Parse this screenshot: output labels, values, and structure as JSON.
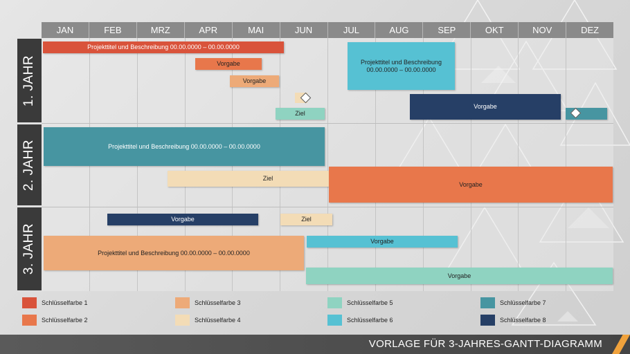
{
  "months": [
    "JAN",
    "FEB",
    "MRZ",
    "APR",
    "MAI",
    "JUN",
    "JUL",
    "AUG",
    "SEP",
    "OKT",
    "NOV",
    "DEZ"
  ],
  "years": [
    "1. JAHR",
    "2. JAHR",
    "3. JAHR"
  ],
  "colors": {
    "c1": "#d9533b",
    "c2": "#e8774b",
    "c3": "#edaa78",
    "c4": "#f3dcb6",
    "c5": "#8fd3c1",
    "c6": "#56c1d3",
    "c7": "#4795a1",
    "c8": "#263f66"
  },
  "bars": {
    "y1_project1": "Projekttitel und Beschreibung 00.00.0000 – 00.00.0000",
    "y1_vorgabe_apr": "Vorgabe",
    "y1_vorgabe_mai": "Vorgabe",
    "y1_ziel_jun": "Ziel",
    "y1_project2_l1": "Projekttitel und Beschreibung",
    "y1_project2_l2": "00.00.0000 – 00.00.0000",
    "y1_vorgabe_okt": "Vorgabe",
    "y2_project": "Projekttitel und Beschreibung 00.00.0000 – 00.00.0000",
    "y2_ziel": "Ziel",
    "y2_vorgabe": "Vorgabe",
    "y3_vorgabe_feb": "Vorgabe",
    "y3_ziel": "Ziel",
    "y3_project": "Projekttitel und Beschreibung 00.00.0000 – 00.00.0000",
    "y3_vorgabe_jul": "Vorgabe",
    "y3_vorgabe_jul2": "Vorgabe"
  },
  "legend": [
    "Schlüsselfarbe 1",
    "Schlüsselfarbe 2",
    "Schlüsselfarbe 3",
    "Schlüsselfarbe 4",
    "Schlüsselfarbe 5",
    "Schlüsselfarbe 6",
    "Schlüsselfarbe 7",
    "Schlüsselfarbe 8"
  ],
  "footer": {
    "title": "VORLAGE FÜR 3-JAHRES-GANTT-DIAGRAMM"
  }
}
